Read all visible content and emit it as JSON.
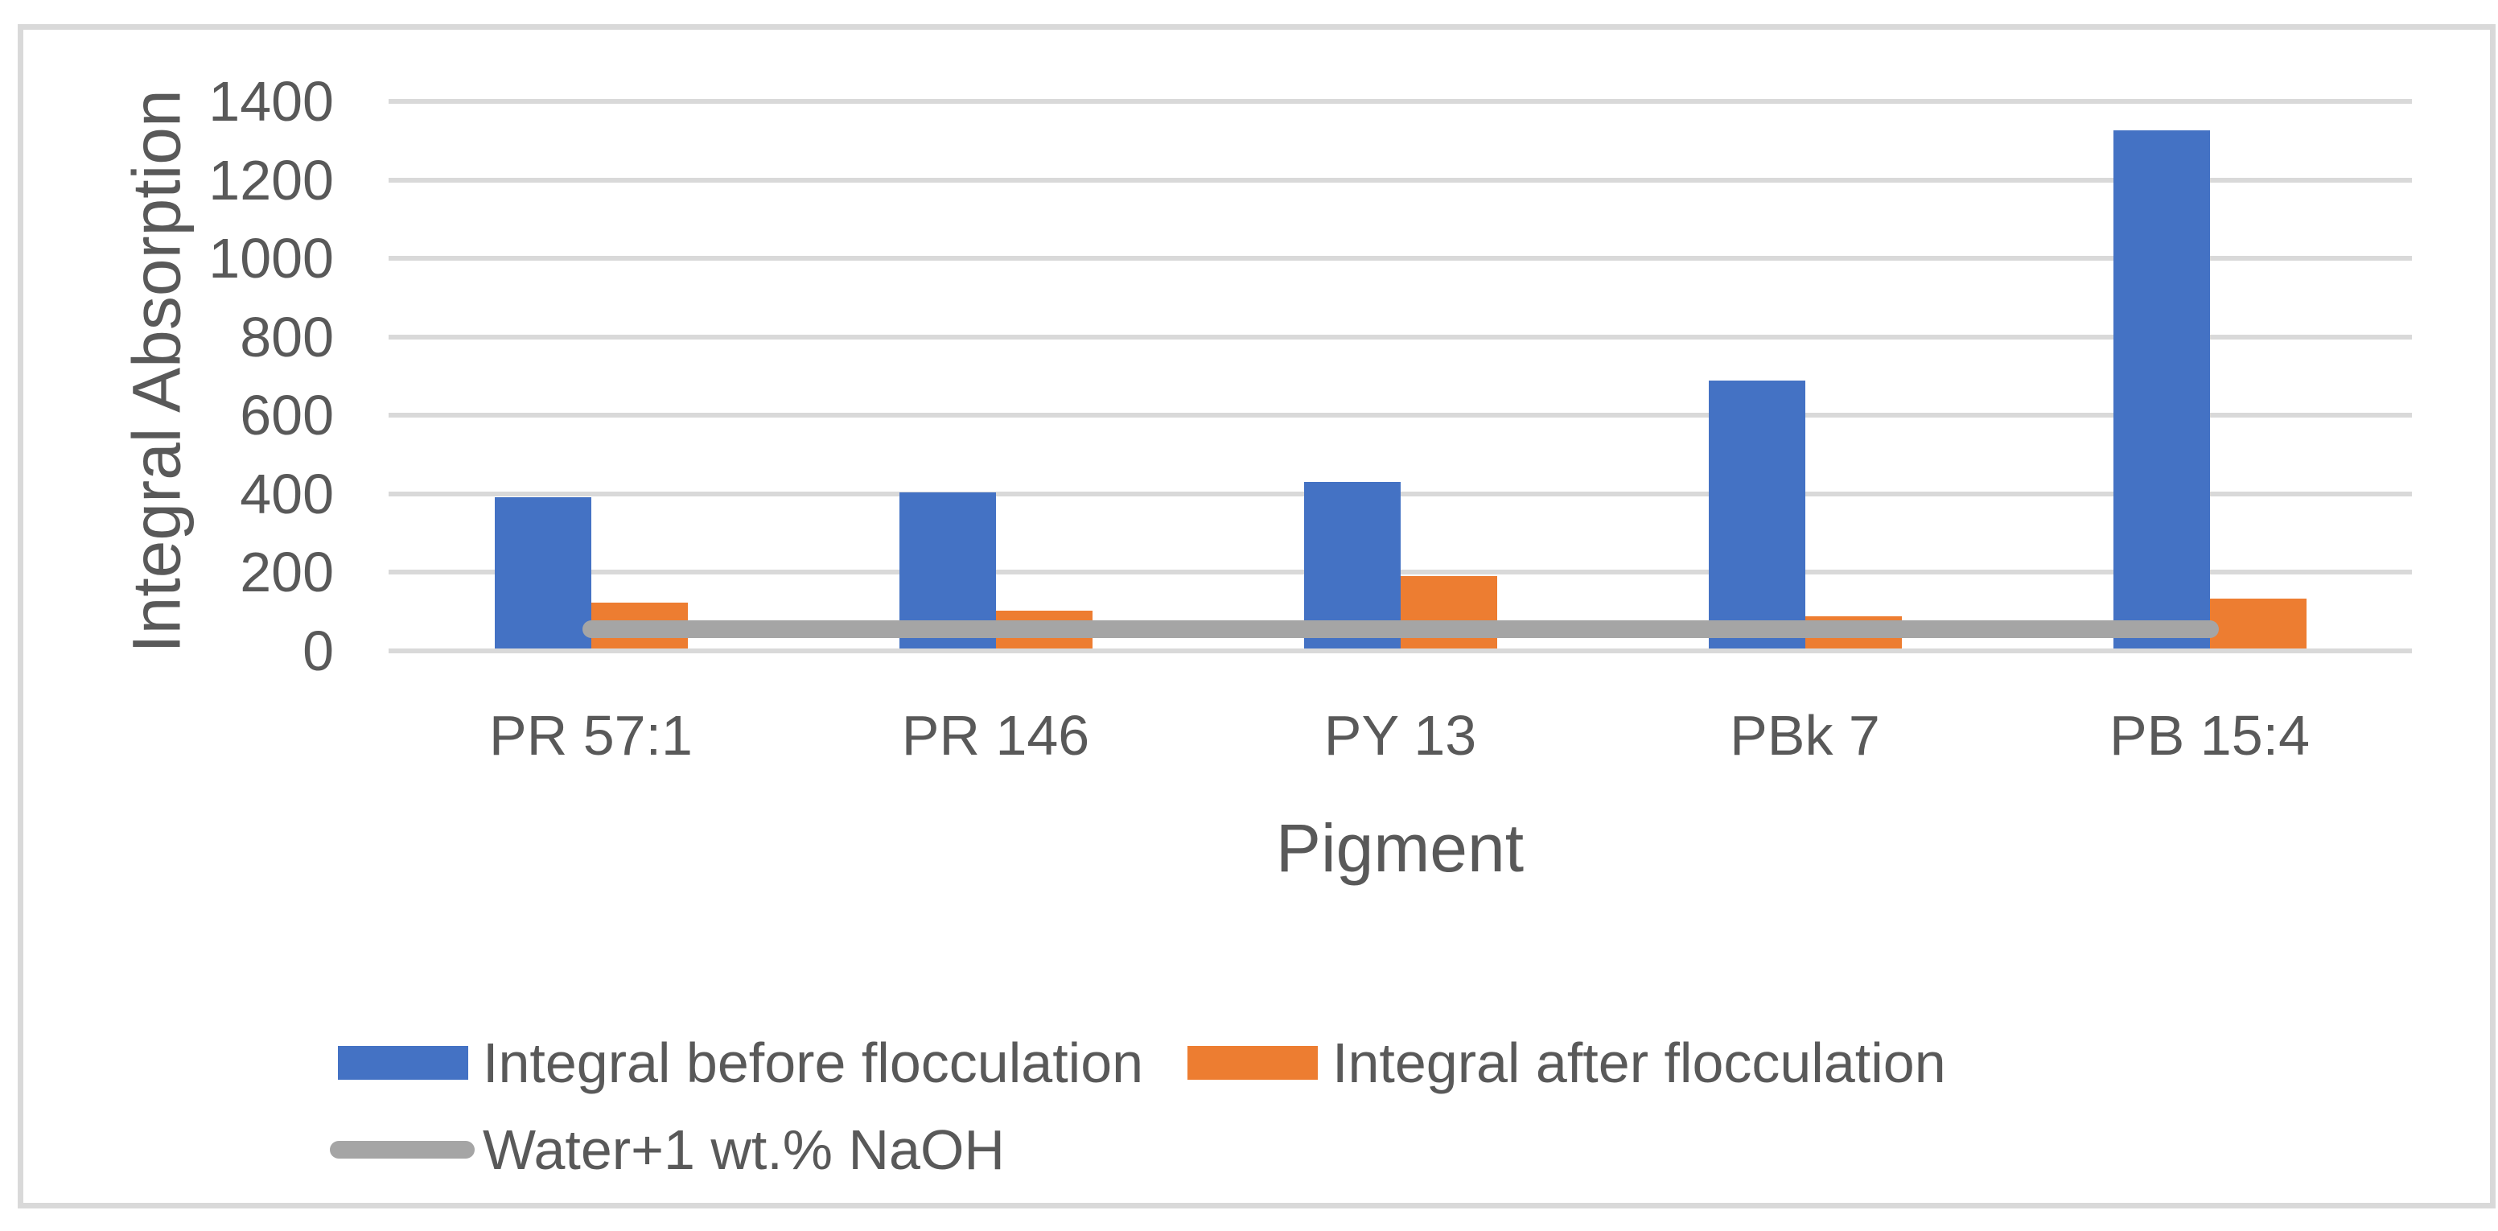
{
  "chart_data": {
    "type": "bar",
    "title": "",
    "categories": [
      "PR 57:1",
      "PR 146",
      "PY 13",
      "PBk 7",
      "PB 15:4"
    ],
    "series": [
      {
        "name": "Integral before flocculation",
        "type": "bar",
        "color": "#4472C4",
        "values": [
          385,
          398,
          424,
          682,
          1321
        ]
      },
      {
        "name": "Integral after flocculation",
        "type": "bar",
        "color": "#ED7D31",
        "values": [
          117,
          97,
          185,
          83,
          128
        ]
      },
      {
        "name": "Water+1 wt.% NaOH",
        "type": "line",
        "color": "#A5A5A5",
        "values": [
          50,
          50,
          50,
          50,
          50
        ]
      }
    ],
    "xlabel": "Pigment",
    "ylabel": "Integral Absorption",
    "ylim": [
      0,
      1400
    ],
    "yticks": [
      0,
      200,
      400,
      600,
      800,
      1000,
      1200,
      1400
    ],
    "grid": true,
    "legend_position": "bottom",
    "gridline_color": "#D9D9D9",
    "frame_border_color": "#D9D9D9",
    "text_color": "#595959"
  }
}
